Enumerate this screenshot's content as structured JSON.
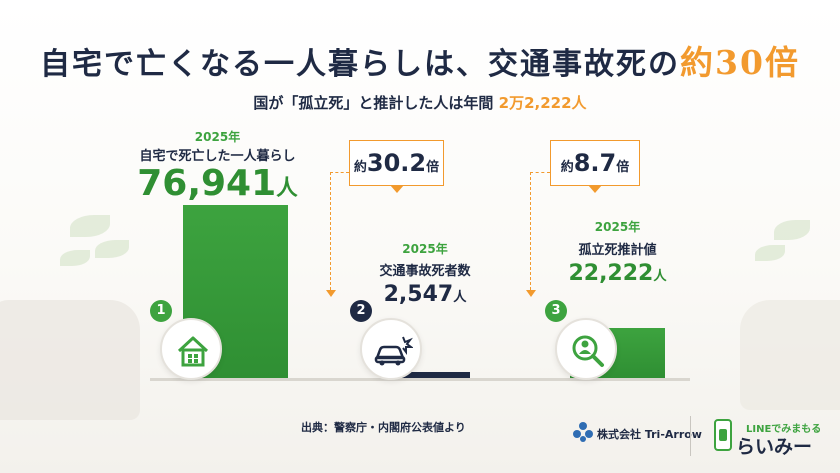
{
  "headline": {
    "prefix": "自宅で亡くなる一人暮らしは、交通事故死の",
    "emphasis": "約30倍"
  },
  "subheadline": {
    "prefix": "国が「孤立死」と推計した人は年間",
    "emphasis": "2万2,222人"
  },
  "chart_data": {
    "type": "bar",
    "categories": [
      "自宅で死亡した一人暮らし",
      "交通事故死者数",
      "孤立死推計値"
    ],
    "values": [
      76941,
      2547,
      22222
    ],
    "year_labels": [
      "2025年",
      "2025年",
      "2025年"
    ],
    "value_labels": [
      "76,941",
      "2,547",
      "22,222"
    ],
    "unit": "人",
    "series_colors": [
      "#2f8f33",
      "#1f2a44",
      "#2f8f33"
    ],
    "ratio_callouts": [
      {
        "prefix": "約",
        "value": "30.2",
        "suffix": "倍"
      },
      {
        "prefix": "約",
        "value": "8.7",
        "suffix": "倍"
      }
    ],
    "badges": [
      "1",
      "2",
      "3"
    ],
    "icons": [
      "house-icon",
      "car-crash-icon",
      "magnifier-person-icon"
    ]
  },
  "footer": {
    "source": "出典：警察庁・内閣府公表値より",
    "brand_company": "株式会社 Tri-Arrow",
    "brand_service_tagline": "LINEでみまもる",
    "brand_service_name": "らいみー"
  },
  "colors": {
    "accent_orange": "#f29a2e",
    "green": "#3da33f",
    "navy": "#1f2a44"
  }
}
